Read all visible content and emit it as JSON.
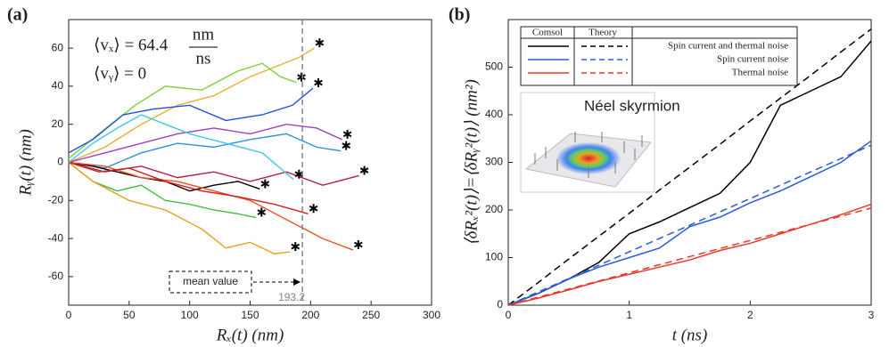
{
  "chart_data": [
    {
      "type": "line",
      "panel": "(a)",
      "xlabel": "Rₓ(t) (nm)",
      "ylabel": "Rᵧ(t) (nm)",
      "xlim": [
        0,
        300
      ],
      "ylim": [
        -75,
        75
      ],
      "xticks": [
        0,
        50,
        100,
        150,
        200,
        250,
        300
      ],
      "yticks": [
        -60,
        -40,
        -20,
        0,
        20,
        40,
        60
      ],
      "velocity_x_text": "⟨vₓ⟩ = 64.4",
      "velocity_unit_num": "nm",
      "velocity_unit_den": "ns",
      "velocity_y_text": "⟨vᵧ⟩ = 0",
      "mean_label": "mean value",
      "mean_x": 193.2,
      "series": [
        {
          "color": "#e8b030",
          "x": [
            0,
            30,
            60,
            90,
            120,
            150,
            170,
            190,
            203
          ],
          "values": [
            0,
            8,
            20,
            30,
            35,
            45,
            50,
            55,
            60
          ]
        },
        {
          "color": "#80d040",
          "x": [
            0,
            25,
            55,
            80,
            110,
            140,
            160,
            175,
            188
          ],
          "values": [
            2,
            15,
            30,
            40,
            38,
            48,
            52,
            45,
            42
          ]
        },
        {
          "color": "#2050e0",
          "x": [
            0,
            20,
            45,
            70,
            100,
            130,
            160,
            185,
            202
          ],
          "values": [
            5,
            12,
            25,
            28,
            30,
            22,
            25,
            30,
            39
          ]
        },
        {
          "color": "#a040c0",
          "x": [
            0,
            30,
            60,
            90,
            120,
            150,
            180,
            205,
            226
          ],
          "values": [
            0,
            5,
            10,
            15,
            18,
            15,
            20,
            18,
            12
          ]
        },
        {
          "color": "#3090e0",
          "x": [
            0,
            30,
            60,
            90,
            120,
            150,
            180,
            205,
            225
          ],
          "values": [
            0,
            -3,
            5,
            10,
            8,
            12,
            15,
            8,
            6
          ]
        },
        {
          "color": "#b02040",
          "x": [
            0,
            30,
            60,
            90,
            120,
            150,
            180,
            210,
            240
          ],
          "values": [
            0,
            -5,
            -2,
            -8,
            -5,
            -10,
            -5,
            -12,
            -7
          ]
        },
        {
          "color": "#000000",
          "x": [
            0,
            20,
            40,
            60,
            80,
            100,
            120,
            140,
            158
          ],
          "values": [
            0,
            -2,
            -5,
            -8,
            -10,
            -15,
            -12,
            -10,
            -14
          ]
        },
        {
          "color": "#40c040",
          "x": [
            0,
            10,
            20,
            40,
            60,
            80,
            100,
            120,
            140,
            155
          ],
          "values": [
            0,
            -5,
            -10,
            -15,
            -12,
            -20,
            -22,
            -25,
            -27,
            -29
          ]
        },
        {
          "color": "#e8a020",
          "x": [
            0,
            20,
            50,
            80,
            110,
            130,
            150,
            170,
            183
          ],
          "values": [
            0,
            -10,
            -20,
            -25,
            -35,
            -45,
            -42,
            -48,
            -47
          ]
        },
        {
          "color": "#f05020",
          "x": [
            0,
            30,
            60,
            90,
            120,
            150,
            180,
            210,
            235
          ],
          "values": [
            0,
            -2,
            -8,
            -10,
            -15,
            -20,
            -30,
            -40,
            -46
          ]
        },
        {
          "color": "#d02020",
          "x": [
            0,
            25,
            50,
            80,
            110,
            140,
            170,
            198
          ],
          "values": [
            0,
            -5,
            -3,
            -10,
            -15,
            -18,
            -22,
            -27
          ]
        },
        {
          "color": "#40c8e8",
          "x": [
            0,
            20,
            40,
            60,
            80,
            100,
            130,
            160,
            186
          ],
          "values": [
            0,
            10,
            18,
            25,
            20,
            15,
            10,
            5,
            -9
          ]
        }
      ]
    },
    {
      "type": "line",
      "panel": "(b)",
      "xlabel": "t (ns)",
      "ylabel": "⟨δRₓ²(t)⟩=⟨δRᵧ²(t)⟩ (nm²)",
      "xlim": [
        0,
        3
      ],
      "ylim": [
        0,
        600
      ],
      "xticks": [
        0,
        1,
        2,
        3
      ],
      "yticks": [
        0,
        100,
        200,
        300,
        400,
        500
      ],
      "legend_columns": [
        "Comsol",
        "Theory"
      ],
      "inset_title": "Néel skyrmion",
      "x": [
        0,
        0.25,
        0.5,
        0.75,
        1,
        1.25,
        1.5,
        1.75,
        2,
        2.25,
        2.5,
        2.75,
        3
      ],
      "series": [
        {
          "name": "Spin current and thermal noise",
          "color": "#000000",
          "values": [
            0,
            25,
            55,
            90,
            150,
            175,
            205,
            235,
            300,
            420,
            450,
            480,
            555
          ]
        },
        {
          "name": "Spin current noise",
          "color": "#2a5bd7",
          "values": [
            0,
            25,
            55,
            80,
            100,
            120,
            165,
            185,
            215,
            240,
            270,
            300,
            345
          ]
        },
        {
          "name": "Thermal noise",
          "color": "#e8392b",
          "values": [
            0,
            15,
            32,
            50,
            65,
            80,
            95,
            115,
            130,
            150,
            170,
            190,
            212
          ]
        },
        {
          "color": "#000000",
          "dash": true,
          "values": [
            0,
            48,
            97,
            145,
            193,
            242,
            290,
            338,
            387,
            435,
            483,
            532,
            580
          ]
        },
        {
          "color": "#2a5bd7",
          "dash": true,
          "values": [
            0,
            28,
            56,
            84,
            112,
            140,
            168,
            196,
            224,
            252,
            280,
            308,
            336
          ]
        },
        {
          "color": "#e8392b",
          "dash": true,
          "values": [
            0,
            17,
            34,
            51,
            68,
            85,
            102,
            119,
            136,
            153,
            170,
            187,
            204
          ]
        }
      ]
    }
  ]
}
